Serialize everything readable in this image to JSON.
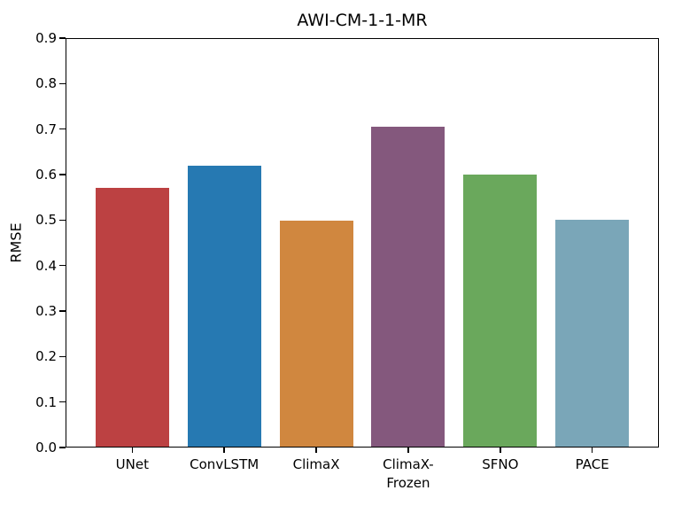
{
  "chart_data": {
    "type": "bar",
    "title": "AWI-CM-1-1-MR",
    "xlabel": "",
    "ylabel": "RMSE",
    "categories": [
      "UNet",
      "ConvLSTM",
      "ClimaX",
      "ClimaX-\nFrozen",
      "SFNO",
      "PACE"
    ],
    "values": [
      0.571,
      0.62,
      0.498,
      0.706,
      0.6,
      0.5
    ],
    "bar_colors": [
      "#bc4142",
      "#2679b2",
      "#d0873f",
      "#84587d",
      "#6aa85c",
      "#7aa6b8"
    ],
    "ylim": [
      0.0,
      0.9
    ],
    "yticks": [
      "0.0",
      "0.1",
      "0.2",
      "0.3",
      "0.4",
      "0.5",
      "0.6",
      "0.7",
      "0.8",
      "0.9"
    ],
    "grid": false,
    "legend": "none",
    "axes_color": "#000000",
    "background_color": "#ffffff"
  }
}
